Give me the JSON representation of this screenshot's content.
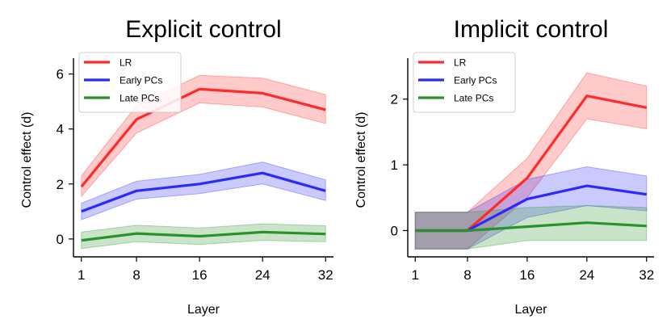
{
  "chart_data": [
    {
      "type": "line",
      "title": "Explicit control",
      "xlabel": "Layer",
      "ylabel": "Control effect (d)",
      "x": [
        1,
        8,
        16,
        24,
        32
      ],
      "xticks": [
        "1",
        "8",
        "16",
        "24",
        "32"
      ],
      "yticks": [
        "0",
        "2",
        "4",
        "6"
      ],
      "ytick_values": [
        0,
        2,
        4,
        6
      ],
      "xlim": [
        0,
        33
      ],
      "ylim": [
        -0.65,
        6.4
      ],
      "legend_position": "top-left",
      "series": [
        {
          "name": "LR",
          "color": "#ff2a2a",
          "values": [
            1.9,
            4.35,
            5.45,
            5.3,
            4.7
          ],
          "lower": [
            1.55,
            3.85,
            4.95,
            4.8,
            4.2
          ],
          "upper": [
            2.3,
            4.85,
            5.95,
            5.85,
            5.25
          ]
        },
        {
          "name": "Early PCs",
          "color": "#2a2aff",
          "values": [
            1.0,
            1.75,
            2.0,
            2.4,
            1.75
          ],
          "lower": [
            0.7,
            1.45,
            1.65,
            2.0,
            1.4
          ],
          "upper": [
            1.3,
            2.1,
            2.35,
            2.8,
            2.15
          ]
        },
        {
          "name": "Late PCs",
          "color": "#2a922a",
          "values": [
            -0.05,
            0.2,
            0.1,
            0.25,
            0.18
          ],
          "lower": [
            -0.35,
            -0.1,
            -0.2,
            -0.05,
            -0.1
          ],
          "upper": [
            0.25,
            0.5,
            0.4,
            0.55,
            0.48
          ]
        }
      ]
    },
    {
      "type": "line",
      "title": "Implicit control",
      "xlabel": "Layer",
      "ylabel": "Control effect (d)",
      "x": [
        1,
        8,
        16,
        24,
        32
      ],
      "xticks": [
        "1",
        "8",
        "16",
        "24",
        "32"
      ],
      "yticks": [
        "0",
        "1",
        "2"
      ],
      "ytick_values": [
        0,
        1,
        2
      ],
      "xlim": [
        0,
        33
      ],
      "ylim": [
        -0.4,
        2.55
      ],
      "legend_position": "top-left",
      "series": [
        {
          "name": "LR",
          "color": "#ff2a2a",
          "values": [
            0,
            0,
            0.8,
            2.05,
            1.87
          ],
          "lower": [
            -0.28,
            -0.28,
            0.5,
            1.7,
            1.55
          ],
          "upper": [
            0.28,
            0.28,
            1.1,
            2.4,
            2.2
          ]
        },
        {
          "name": "Early PCs",
          "color": "#2a2aff",
          "values": [
            0,
            0,
            0.48,
            0.68,
            0.55
          ],
          "lower": [
            -0.28,
            -0.28,
            0.2,
            0.38,
            0.3
          ],
          "upper": [
            0.28,
            0.28,
            0.78,
            0.97,
            0.83
          ]
        },
        {
          "name": "Late PCs",
          "color": "#2a922a",
          "values": [
            0,
            0,
            0.06,
            0.12,
            0.07
          ],
          "lower": [
            -0.28,
            -0.28,
            -0.15,
            -0.15,
            -0.15
          ],
          "upper": [
            0.28,
            0.28,
            0.35,
            0.38,
            0.35
          ]
        }
      ]
    }
  ]
}
